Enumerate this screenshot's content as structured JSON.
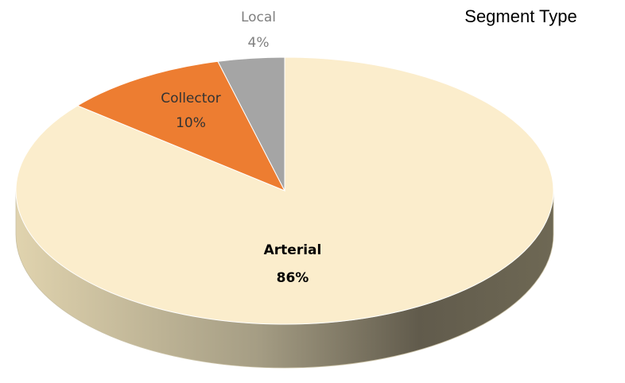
{
  "chart_data": {
    "type": "pie",
    "title": "Segment Type",
    "categories": [
      "Arterial",
      "Collector",
      "Local"
    ],
    "values": [
      86,
      10,
      4
    ],
    "value_labels": [
      "86%",
      "10%",
      "4%"
    ],
    "colors": [
      "#fbedcc",
      "#ed7d31",
      "#a5a5a5"
    ]
  }
}
